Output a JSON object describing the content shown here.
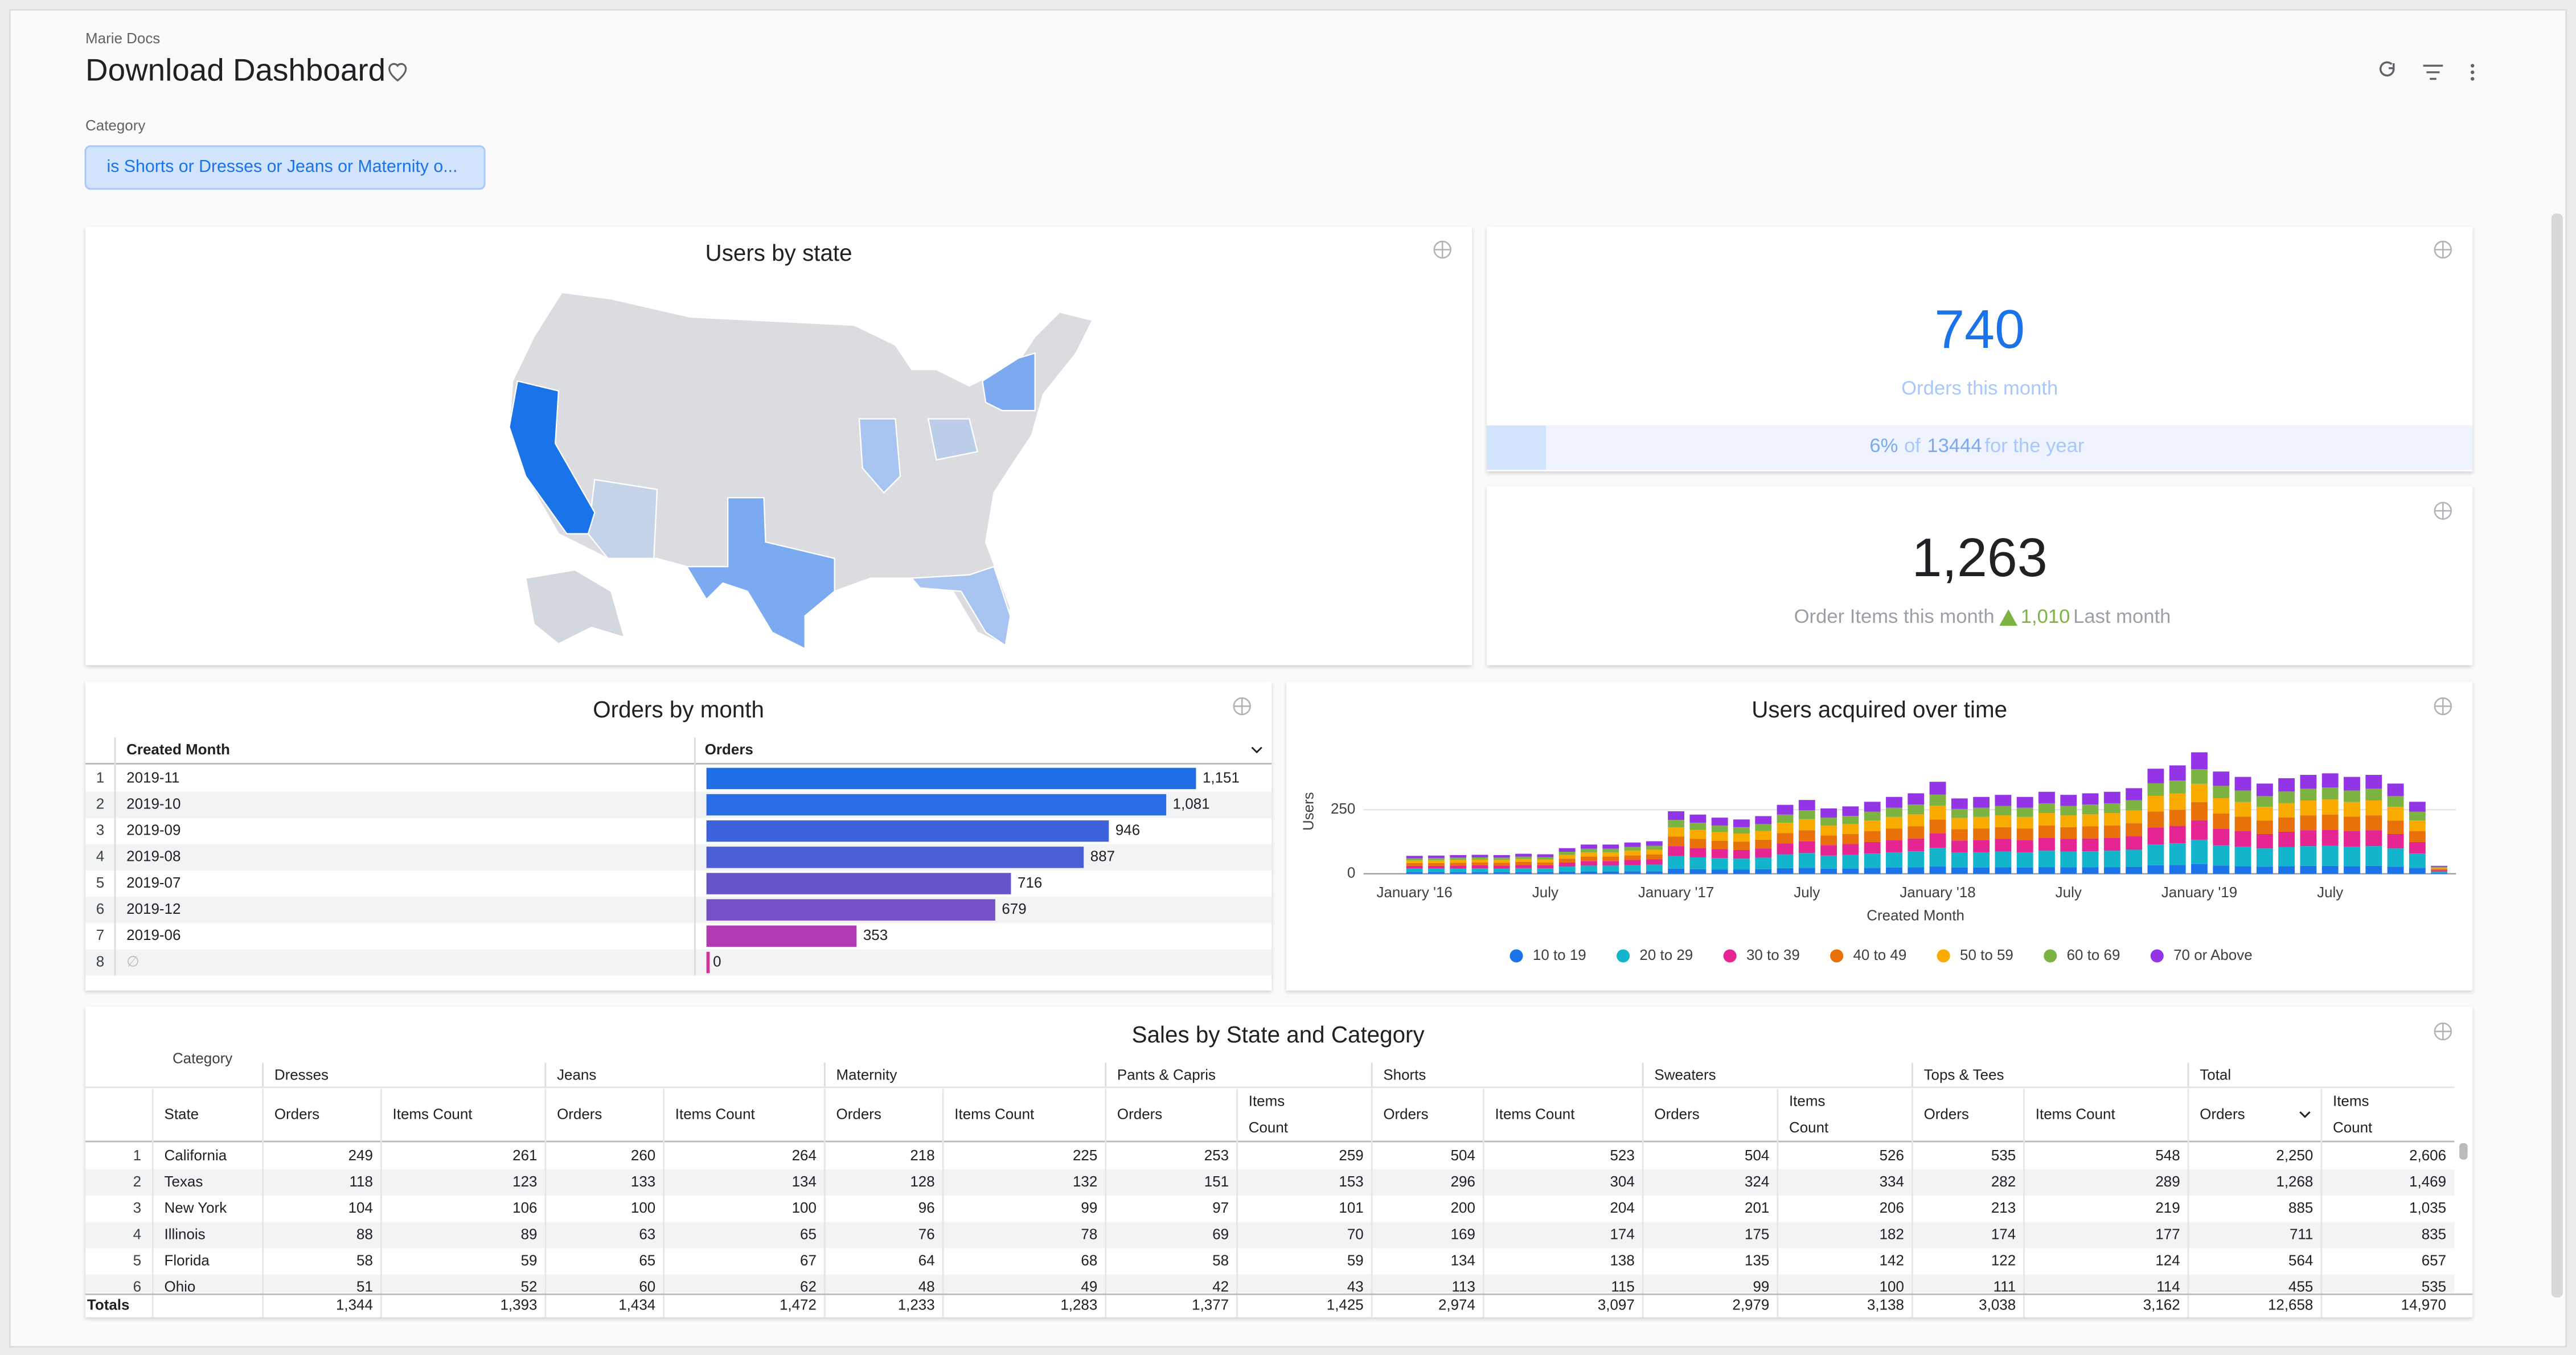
{
  "header": {
    "breadcrumb": "Marie Docs",
    "title": "Download Dashboard"
  },
  "filter": {
    "label": "Category",
    "value": "is Shorts or Dresses or Jeans or Maternity o..."
  },
  "map_tile": {
    "title": "Users by state"
  },
  "orders_tile": {
    "value": "740",
    "label": "Orders this month",
    "percent": {
      "value": 6,
      "label": "6%"
    },
    "of": "of",
    "total": "13444",
    "suffix": "for the year"
  },
  "items_tile": {
    "value": "1,263",
    "label": "Order Items this month",
    "change": "1,010",
    "suffix": "Last month"
  },
  "chart_data": [
    {
      "type": "hbar",
      "title": "Orders by month",
      "columns": [
        "Created Month",
        "Orders"
      ],
      "index": [
        1,
        2,
        3,
        4,
        5,
        6,
        7,
        8
      ],
      "categories": [
        "2019-11",
        "2019-10",
        "2019-09",
        "2019-08",
        "2019-07",
        "2019-12",
        "2019-06",
        "∅"
      ],
      "values": [
        1151,
        1081,
        946,
        887,
        716,
        679,
        353,
        0
      ],
      "value_labels": [
        "1,151",
        "1,081",
        "946",
        "887",
        "716",
        "679",
        "353",
        "0"
      ],
      "colors": [
        "#1f6ee6",
        "#2a6ce4",
        "#3c63dc",
        "#4a5ed6",
        "#6555cb",
        "#7550c6",
        "#b13bb2",
        "#d6309c"
      ],
      "xlim": [
        0,
        1151
      ]
    },
    {
      "type": "stacked_bar",
      "title": "Users acquired over time",
      "y_label": "Users",
      "x_label": "Created Month",
      "categories": [
        "January '16",
        null,
        null,
        null,
        null,
        null,
        "July",
        null,
        null,
        null,
        null,
        null,
        "January '17",
        null,
        null,
        null,
        null,
        null,
        "July",
        null,
        null,
        null,
        null,
        null,
        "January '18",
        null,
        null,
        null,
        null,
        null,
        "July",
        null,
        null,
        null,
        null,
        null,
        "January '19",
        null,
        null,
        null,
        null,
        null,
        "July",
        null,
        null,
        null,
        null,
        null
      ],
      "ylim": [
        0,
        500
      ],
      "yticks": [
        0,
        250
      ],
      "grid": true,
      "series": [
        {
          "name": "10 to 19",
          "color": "#1a73e8",
          "values": [
            6,
            6,
            6,
            6,
            6,
            6,
            6,
            8,
            9,
            9,
            10,
            10,
            20,
            18,
            17,
            17,
            18,
            22,
            23,
            20,
            21,
            23,
            24,
            25,
            29,
            24,
            24,
            25,
            24,
            26,
            25,
            25,
            26,
            27,
            33,
            34,
            38,
            32,
            30,
            28,
            30,
            31,
            31,
            30,
            31,
            28,
            23,
            3
          ]
        },
        {
          "name": "20 to 29",
          "color": "#12b5cb",
          "values": [
            14,
            14,
            14,
            15,
            14,
            16,
            15,
            20,
            23,
            23,
            24,
            26,
            49,
            46,
            44,
            42,
            45,
            54,
            58,
            51,
            53,
            56,
            60,
            63,
            72,
            59,
            60,
            62,
            60,
            64,
            62,
            63,
            64,
            67,
            82,
            85,
            95,
            79,
            76,
            71,
            74,
            77,
            78,
            76,
            77,
            71,
            56,
            6
          ]
        },
        {
          "name": "30 to 39",
          "color": "#e52592",
          "values": [
            11,
            11,
            12,
            12,
            12,
            12,
            12,
            16,
            18,
            18,
            20,
            20,
            39,
            37,
            35,
            34,
            36,
            43,
            46,
            41,
            42,
            45,
            48,
            50,
            57,
            47,
            48,
            49,
            48,
            51,
            49,
            50,
            51,
            53,
            66,
            68,
            76,
            64,
            60,
            56,
            60,
            62,
            63,
            60,
            62,
            56,
            45,
            5
          ]
        },
        {
          "name": "40 to 49",
          "color": "#e8710a",
          "values": [
            11,
            11,
            11,
            11,
            11,
            12,
            11,
            15,
            17,
            17,
            18,
            19,
            37,
            35,
            33,
            32,
            34,
            40,
            43,
            38,
            39,
            42,
            45,
            47,
            54,
            44,
            45,
            46,
            45,
            48,
            46,
            47,
            48,
            50,
            62,
            63,
            71,
            60,
            57,
            53,
            56,
            58,
            59,
            57,
            58,
            53,
            42,
            5
          ]
        },
        {
          "name": "50 to 59",
          "color": "#f9ab00",
          "values": [
            10,
            11,
            11,
            11,
            11,
            12,
            12,
            15,
            17,
            17,
            18,
            19,
            36,
            35,
            33,
            32,
            34,
            40,
            43,
            38,
            39,
            42,
            45,
            47,
            54,
            44,
            45,
            46,
            45,
            48,
            46,
            47,
            48,
            50,
            61,
            63,
            71,
            60,
            57,
            53,
            56,
            58,
            59,
            57,
            58,
            53,
            42,
            4
          ]
        },
        {
          "name": "60 to 69",
          "color": "#7cb342",
          "values": [
            8,
            8,
            9,
            9,
            9,
            9,
            9,
            12,
            14,
            14,
            15,
            15,
            29,
            28,
            26,
            25,
            27,
            32,
            35,
            31,
            32,
            34,
            36,
            38,
            43,
            35,
            36,
            37,
            36,
            38,
            37,
            38,
            38,
            40,
            49,
            51,
            57,
            48,
            45,
            42,
            45,
            46,
            47,
            45,
            46,
            42,
            34,
            4
          ]
        },
        {
          "name": "70 or Above",
          "color": "#9334e6",
          "values": [
            10,
            10,
            10,
            10,
            10,
            11,
            11,
            14,
            16,
            16,
            17,
            18,
            34,
            32,
            31,
            30,
            31,
            38,
            40,
            36,
            37,
            39,
            42,
            44,
            50,
            41,
            42,
            43,
            42,
            45,
            43,
            44,
            45,
            47,
            57,
            59,
            66,
            56,
            53,
            49,
            52,
            54,
            55,
            53,
            54,
            49,
            39,
            4
          ]
        }
      ]
    }
  ],
  "sales_table": {
    "title": "Sales by State and Category",
    "pivot_label": "Category",
    "state_header": "State",
    "groups": [
      "Dresses",
      "Jeans",
      "Maternity",
      "Pants & Capris",
      "Shorts",
      "Sweaters",
      "Tops & Tees",
      "Total"
    ],
    "measures": [
      "Orders",
      "Items Count"
    ],
    "rows": [
      [
        "1",
        "California",
        "249",
        "261",
        "260",
        "264",
        "218",
        "225",
        "253",
        "259",
        "504",
        "523",
        "504",
        "526",
        "535",
        "548",
        "2,250",
        "2,606"
      ],
      [
        "2",
        "Texas",
        "118",
        "123",
        "133",
        "134",
        "128",
        "132",
        "151",
        "153",
        "296",
        "304",
        "324",
        "334",
        "282",
        "289",
        "1,268",
        "1,469"
      ],
      [
        "3",
        "New York",
        "104",
        "106",
        "100",
        "100",
        "96",
        "99",
        "97",
        "101",
        "200",
        "204",
        "201",
        "206",
        "213",
        "219",
        "885",
        "1,035"
      ],
      [
        "4",
        "Illinois",
        "88",
        "89",
        "63",
        "65",
        "76",
        "78",
        "69",
        "70",
        "169",
        "174",
        "175",
        "182",
        "174",
        "177",
        "711",
        "835"
      ],
      [
        "5",
        "Florida",
        "58",
        "59",
        "65",
        "67",
        "64",
        "68",
        "58",
        "59",
        "134",
        "138",
        "135",
        "142",
        "122",
        "124",
        "564",
        "657"
      ],
      [
        "6",
        "Ohio",
        "51",
        "52",
        "60",
        "62",
        "48",
        "49",
        "42",
        "43",
        "113",
        "115",
        "99",
        "100",
        "111",
        "114",
        "455",
        "535"
      ]
    ],
    "totals_label": "Totals",
    "totals": [
      "1,344",
      "1,393",
      "1,434",
      "1,472",
      "1,233",
      "1,283",
      "1,377",
      "1,425",
      "2,974",
      "3,097",
      "2,979",
      "3,138",
      "3,038",
      "3,162",
      "12,658",
      "14,970"
    ]
  }
}
